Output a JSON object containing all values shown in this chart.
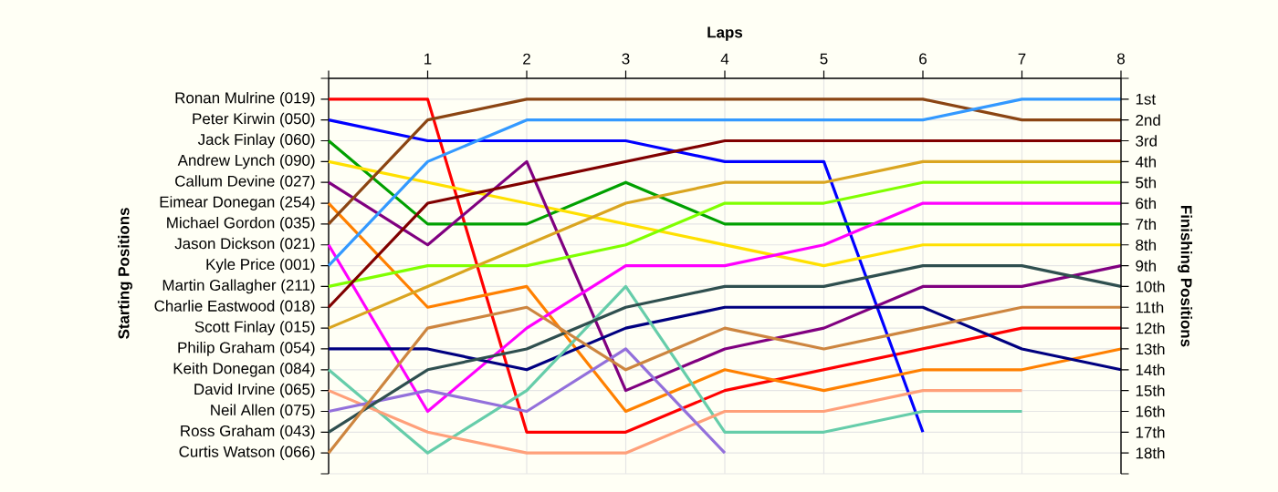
{
  "chart_data": {
    "type": "line",
    "xlabel": "Laps",
    "annotations": [
      "Starting Positions"
    ],
    "y2label": "Finishing Positions",
    "x": [
      0,
      1,
      2,
      3,
      4,
      5,
      6,
      7,
      8
    ],
    "xlim": [
      0,
      8
    ],
    "xticks": [
      {
        "value": 0,
        "label": null
      },
      1,
      2,
      3,
      4,
      5,
      6,
      7,
      8
    ],
    "y2lim": [
      19,
      0
    ],
    "y2ticks": [
      {
        "value": 0,
        "label": null
      },
      {
        "value": 1,
        "label": "1st"
      },
      {
        "value": 2,
        "label": "2nd"
      },
      {
        "value": 3,
        "label": "3rd"
      },
      {
        "value": 4,
        "label": "4th"
      },
      {
        "value": 5,
        "label": "5th"
      },
      {
        "value": 6,
        "label": "6th"
      },
      {
        "value": 7,
        "label": "7th"
      },
      {
        "value": 8,
        "label": "8th"
      },
      {
        "value": 9,
        "label": "9th"
      },
      {
        "value": 10,
        "label": "10th"
      },
      {
        "value": 11,
        "label": "11th"
      },
      {
        "value": 12,
        "label": "12th"
      },
      {
        "value": 13,
        "label": "13th"
      },
      {
        "value": 14,
        "label": "14th"
      },
      {
        "value": 15,
        "label": "15th"
      },
      {
        "value": 16,
        "label": "16th"
      },
      {
        "value": 17,
        "label": "17th"
      },
      {
        "value": 18,
        "label": "18th"
      },
      {
        "value": 19,
        "label": null
      }
    ],
    "grid": true,
    "series": [
      {
        "name": "Ronan Mulrine (019)",
        "axis": "y2",
        "color": "#ff0000",
        "values": [
          1,
          1,
          17,
          17,
          15,
          14,
          13,
          12,
          12
        ]
      },
      {
        "name": "Peter Kirwin (050)",
        "axis": "y2",
        "color": "#0000ff",
        "values": [
          2,
          3,
          3,
          3,
          4,
          4,
          17,
          null,
          null
        ]
      },
      {
        "name": "Jack Finlay (060)",
        "axis": "y2",
        "color": "#00a000",
        "values": [
          3,
          7,
          7,
          5,
          7,
          7,
          7,
          7,
          7
        ]
      },
      {
        "name": "Andrew Lynch (090)",
        "axis": "y2",
        "color": "#ffe000",
        "values": [
          4,
          5,
          6,
          7,
          8,
          9,
          8,
          8,
          8
        ]
      },
      {
        "name": "Callum Devine (027)",
        "axis": "y2",
        "color": "#800080",
        "values": [
          5,
          8,
          4,
          15,
          13,
          12,
          10,
          10,
          9
        ]
      },
      {
        "name": "Eimear Donegan (254)",
        "axis": "y2",
        "color": "#ff8000",
        "values": [
          6,
          11,
          10,
          16,
          14,
          15,
          14,
          14,
          13
        ]
      },
      {
        "name": "Michael Gordon (035)",
        "axis": "y2",
        "color": "#8b4513",
        "values": [
          7,
          2,
          1,
          1,
          1,
          1,
          1,
          2,
          2
        ]
      },
      {
        "name": "Jason Dickson (021)",
        "axis": "y2",
        "color": "#ff00ff",
        "values": [
          8,
          16,
          12,
          9,
          9,
          8,
          6,
          6,
          6
        ]
      },
      {
        "name": "Kyle Price (001)",
        "axis": "y2",
        "color": "#3399ff",
        "values": [
          9,
          4,
          2,
          2,
          2,
          2,
          2,
          1,
          1
        ]
      },
      {
        "name": "Martin Gallagher (211)",
        "axis": "y2",
        "color": "#80ff00",
        "values": [
          10,
          9,
          9,
          8,
          6,
          6,
          5,
          5,
          5
        ]
      },
      {
        "name": "Charlie Eastwood (018)",
        "axis": "y2",
        "color": "#800000",
        "values": [
          11,
          6,
          5,
          4,
          3,
          3,
          3,
          3,
          3
        ]
      },
      {
        "name": "Scott Finlay (015)",
        "axis": "y2",
        "color": "#daa520",
        "values": [
          12,
          10,
          8,
          6,
          5,
          5,
          4,
          4,
          4
        ]
      },
      {
        "name": "Philip Graham (054)",
        "axis": "y2",
        "color": "#000080",
        "values": [
          13,
          13,
          14,
          12,
          11,
          11,
          11,
          13,
          14
        ]
      },
      {
        "name": "Keith Donegan (084)",
        "axis": "y2",
        "color": "#66cdaa",
        "values": [
          14,
          18,
          15,
          10,
          17,
          17,
          16,
          16,
          null
        ]
      },
      {
        "name": "David Irvine (065)",
        "axis": "y2",
        "color": "#ffa07a",
        "values": [
          15,
          17,
          18,
          18,
          16,
          16,
          15,
          15,
          null
        ]
      },
      {
        "name": "Neil Allen (075)",
        "axis": "y2",
        "color": "#9370db",
        "values": [
          16,
          15,
          16,
          13,
          18,
          null,
          null,
          null,
          null
        ]
      },
      {
        "name": "Ross Graham (043)",
        "axis": "y2",
        "color": "#2f4f4f",
        "values": [
          17,
          14,
          13,
          11,
          10,
          10,
          9,
          9,
          10
        ]
      },
      {
        "name": "Curtis Watson (066)",
        "axis": "y2",
        "color": "#cd853f",
        "values": [
          18,
          12,
          11,
          14,
          12,
          13,
          12,
          11,
          11
        ]
      }
    ]
  }
}
